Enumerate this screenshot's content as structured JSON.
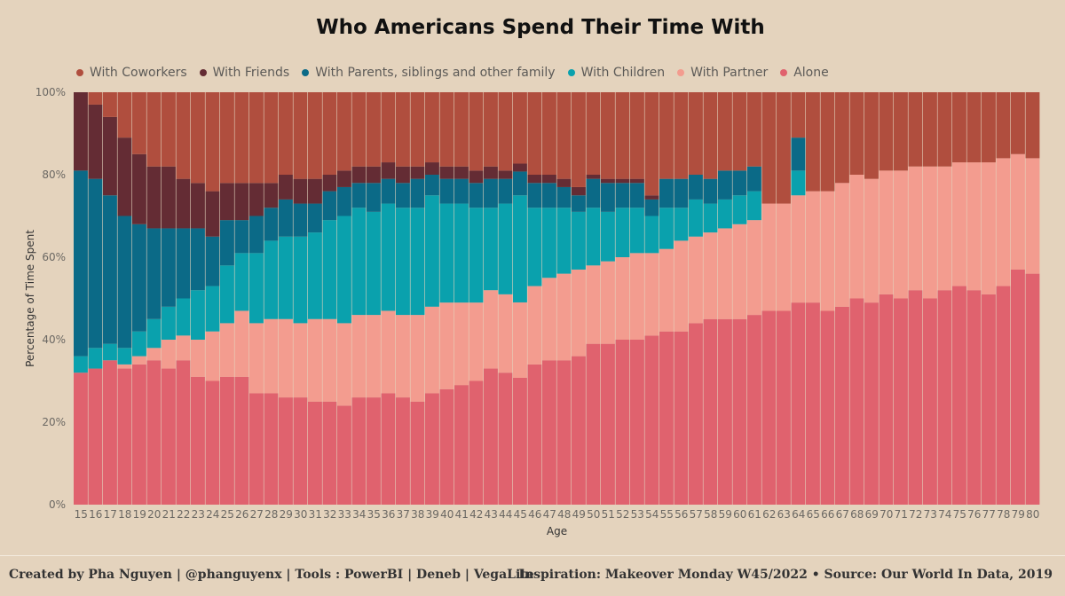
{
  "chart_data": {
    "type": "bar",
    "stacked": true,
    "normalized": true,
    "title": "Who Americans Spend Their Time With",
    "xlabel": "Age",
    "ylabel": "Percentage of Time Spent",
    "ylim": [
      0,
      100
    ],
    "y_ticks": [
      "0%",
      "20%",
      "40%",
      "60%",
      "80%",
      "100%"
    ],
    "grid": false,
    "legend_position": "top-left",
    "categories": [
      "15",
      "16",
      "17",
      "18",
      "19",
      "20",
      "21",
      "22",
      "23",
      "24",
      "25",
      "26",
      "27",
      "28",
      "29",
      "30",
      "31",
      "32",
      "33",
      "34",
      "35",
      "36",
      "37",
      "38",
      "39",
      "40",
      "41",
      "42",
      "43",
      "44",
      "45",
      "46",
      "47",
      "48",
      "49",
      "50",
      "51",
      "52",
      "53",
      "54",
      "55",
      "56",
      "57",
      "58",
      "59",
      "60",
      "61",
      "62",
      "63",
      "64",
      "65",
      "66",
      "67",
      "68",
      "69",
      "70",
      "71",
      "72",
      "73",
      "74",
      "75",
      "76",
      "77",
      "78",
      "79",
      "80"
    ],
    "series": [
      {
        "name": "Alone",
        "color": "#e0626e",
        "values": [
          32,
          33,
          35,
          33,
          34,
          35,
          33,
          35,
          31,
          30,
          31,
          31,
          27,
          27,
          26,
          26,
          25,
          25,
          24,
          26,
          26,
          27,
          26,
          25,
          27,
          28,
          29,
          30,
          33,
          32,
          32,
          34,
          35,
          35,
          36,
          39,
          39,
          40,
          40,
          41,
          42,
          42,
          44,
          45,
          45,
          45,
          46,
          47,
          47,
          49,
          49,
          47,
          48,
          50,
          49,
          51,
          50,
          52,
          50,
          52,
          53,
          52,
          51,
          53,
          57,
          56
        ]
      },
      {
        "name": "With Partner",
        "color": "#f39c8f",
        "values": [
          0,
          0,
          0,
          1,
          2,
          3,
          7,
          6,
          9,
          12,
          13,
          16,
          17,
          18,
          19,
          18,
          20,
          20,
          20,
          20,
          20,
          20,
          20,
          21,
          21,
          21,
          20,
          19,
          19,
          19,
          19,
          19,
          20,
          21,
          21,
          19,
          20,
          20,
          21,
          20,
          20,
          22,
          21,
          21,
          22,
          23,
          23,
          26,
          26,
          26,
          27,
          29,
          30,
          30,
          30,
          30,
          31,
          30,
          32,
          30,
          30,
          31,
          32,
          31,
          28,
          28
        ]
      },
      {
        "name": "With Children",
        "color": "#0aa1ad",
        "values": [
          4,
          5,
          4,
          4,
          6,
          7,
          8,
          9,
          12,
          11,
          14,
          14,
          17,
          19,
          20,
          21,
          21,
          24,
          26,
          26,
          25,
          26,
          26,
          26,
          27,
          24,
          24,
          23,
          20,
          22,
          27,
          19,
          17,
          16,
          14,
          14,
          12,
          12,
          11,
          9,
          10,
          8,
          9,
          7,
          7,
          7,
          7,
          0,
          0,
          6,
          0,
          0,
          0,
          0,
          0,
          0,
          0,
          0,
          0,
          0,
          0,
          0,
          0,
          0,
          0,
          0
        ]
      },
      {
        "name": "With Parents, siblings and other family",
        "color": "#0b6a87",
        "values": [
          45,
          41,
          36,
          32,
          26,
          22,
          19,
          17,
          15,
          12,
          11,
          8,
          9,
          8,
          9,
          8,
          7,
          7,
          7,
          6,
          7,
          6,
          6,
          7,
          5,
          6,
          6,
          6,
          7,
          6,
          6,
          6,
          6,
          5,
          4,
          7,
          7,
          6,
          6,
          4,
          7,
          7,
          6,
          6,
          7,
          6,
          6,
          0,
          0,
          8,
          0,
          0,
          0,
          0,
          0,
          0,
          0,
          0,
          0,
          0,
          0,
          0,
          0,
          0,
          0,
          0
        ]
      },
      {
        "name": "With Friends",
        "color": "#642c34",
        "values": [
          19,
          18,
          19,
          19,
          17,
          15,
          15,
          12,
          11,
          11,
          9,
          9,
          8,
          6,
          6,
          6,
          6,
          4,
          4,
          4,
          4,
          4,
          4,
          3,
          3,
          3,
          3,
          3,
          3,
          2,
          2,
          2,
          2,
          2,
          2,
          1,
          1,
          1,
          1,
          1,
          0,
          0,
          0,
          0,
          0,
          0,
          0,
          0,
          0,
          0,
          0,
          0,
          0,
          0,
          0,
          0,
          0,
          0,
          0,
          0,
          0,
          0,
          0,
          0,
          0,
          0
        ]
      },
      {
        "name": "With Coworkers",
        "color": "#b04e3e",
        "values": [
          0,
          3,
          6,
          11,
          15,
          18,
          18,
          21,
          22,
          24,
          22,
          22,
          22,
          22,
          20,
          21,
          21,
          20,
          19,
          18,
          18,
          17,
          18,
          18,
          17,
          18,
          18,
          19,
          18,
          19,
          18,
          20,
          20,
          21,
          23,
          20,
          21,
          21,
          21,
          25,
          21,
          21,
          20,
          21,
          19,
          19,
          18,
          0,
          0,
          0,
          0,
          0,
          0,
          0,
          0,
          0,
          0,
          0,
          0,
          0,
          0,
          0,
          0,
          0,
          0,
          0
        ]
      }
    ],
    "tail_values_note_free": true
  },
  "footer": {
    "left": "Created by Pha Nguyen  | @phanguyenx | Tools : PowerBI | Deneb | VegaLite",
    "right": "Inspiration: Makeover Monday W45/2022 •  Source: Our World In Data, 2019"
  }
}
